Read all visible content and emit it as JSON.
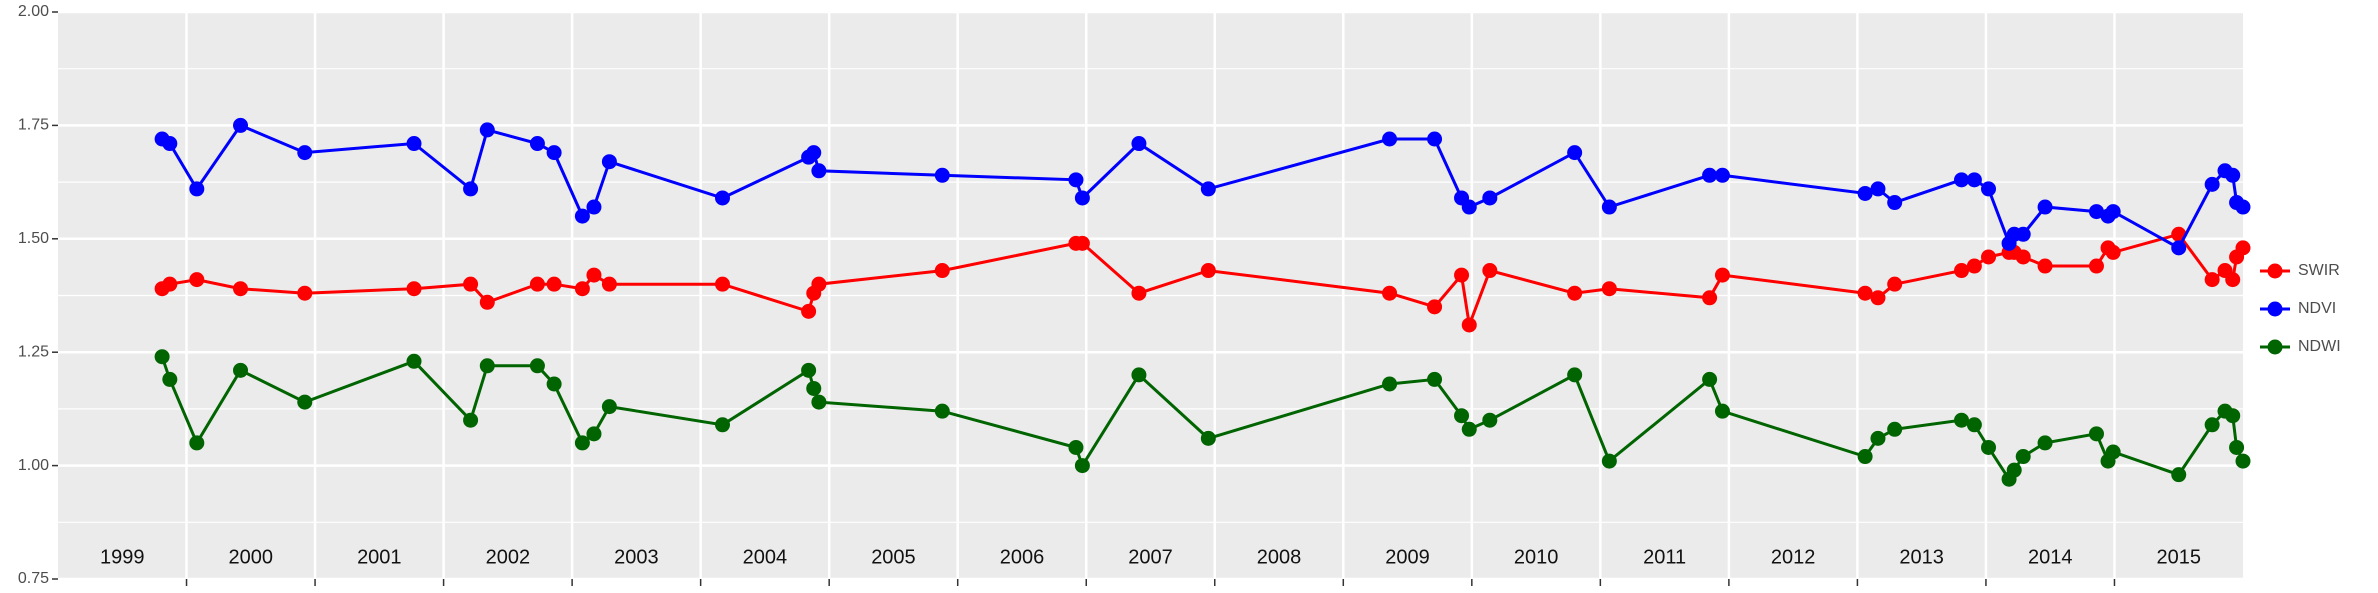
{
  "chart_data": {
    "type": "line",
    "x": [
      1999.81,
      1999.87,
      2000.08,
      2000.42,
      2000.92,
      2001.77,
      2002.21,
      2002.34,
      2002.73,
      2002.86,
      2003.08,
      2003.17,
      2003.29,
      2004.17,
      2004.84,
      2004.88,
      2004.92,
      2005.88,
      2006.92,
      2006.97,
      2007.41,
      2007.95,
      2009.36,
      2009.71,
      2009.92,
      2009.98,
      2010.14,
      2010.8,
      2011.07,
      2011.85,
      2011.95,
      2013.06,
      2013.16,
      2013.29,
      2013.81,
      2013.91,
      2014.02,
      2014.18,
      2014.22,
      2014.29,
      2014.46,
      2014.86,
      2014.95,
      2014.99,
      2015.5,
      2015.76,
      2015.86,
      2015.92,
      2015.95,
      2016.0
    ],
    "series": [
      {
        "name": "SWIR",
        "color": "#ff0000",
        "values": [
          1.39,
          1.4,
          1.41,
          1.39,
          1.38,
          1.39,
          1.4,
          1.36,
          1.4,
          1.4,
          1.39,
          1.42,
          1.4,
          1.4,
          1.34,
          1.38,
          1.4,
          1.43,
          1.49,
          1.49,
          1.38,
          1.43,
          1.38,
          1.35,
          1.42,
          1.31,
          1.43,
          1.38,
          1.39,
          1.37,
          1.42,
          1.38,
          1.37,
          1.4,
          1.43,
          1.44,
          1.46,
          1.47,
          1.47,
          1.46,
          1.44,
          1.44,
          1.48,
          1.47,
          1.51,
          1.41,
          1.43,
          1.41,
          1.46,
          1.48
        ]
      },
      {
        "name": "NDVI",
        "color": "#0000ff",
        "values": [
          1.72,
          1.71,
          1.61,
          1.75,
          1.69,
          1.71,
          1.61,
          1.74,
          1.71,
          1.69,
          1.55,
          1.57,
          1.67,
          1.59,
          1.68,
          1.69,
          1.65,
          1.64,
          1.63,
          1.59,
          1.71,
          1.61,
          1.72,
          1.72,
          1.59,
          1.57,
          1.59,
          1.69,
          1.57,
          1.64,
          1.64,
          1.6,
          1.61,
          1.58,
          1.63,
          1.63,
          1.61,
          1.49,
          1.51,
          1.51,
          1.57,
          1.56,
          1.55,
          1.56,
          1.48,
          1.62,
          1.65,
          1.64,
          1.58,
          1.57
        ]
      },
      {
        "name": "NDWI",
        "color": "#006400",
        "values": [
          1.24,
          1.19,
          1.05,
          1.21,
          1.14,
          1.23,
          1.1,
          1.22,
          1.22,
          1.18,
          1.05,
          1.07,
          1.13,
          1.09,
          1.21,
          1.17,
          1.14,
          1.12,
          1.04,
          1.0,
          1.2,
          1.06,
          1.18,
          1.19,
          1.11,
          1.08,
          1.1,
          1.2,
          1.01,
          1.19,
          1.12,
          1.02,
          1.06,
          1.08,
          1.1,
          1.09,
          1.04,
          0.97,
          0.99,
          1.02,
          1.05,
          1.07,
          1.01,
          1.03,
          0.98,
          1.09,
          1.12,
          1.11,
          1.04,
          1.01
        ]
      }
    ],
    "xlim": [
      1999.0,
      2016.0
    ],
    "xgrid": [
      2000,
      2001,
      2002,
      2003,
      2004,
      2005,
      2006,
      2007,
      2008,
      2009,
      2010,
      2011,
      2012,
      2013,
      2014,
      2015
    ],
    "ylim": [
      0.75,
      2.0
    ],
    "yticks": [
      {
        "value": 0.75,
        "label": "0.75"
      },
      {
        "value": 1.0,
        "label": "1.00"
      },
      {
        "value": 1.25,
        "label": "1.25"
      },
      {
        "value": 1.5,
        "label": "1.50"
      },
      {
        "value": 1.75,
        "label": "1.75"
      },
      {
        "value": 2.0,
        "label": "2.00"
      }
    ],
    "annotations": [
      {
        "text": "1999",
        "x": 1999.5
      },
      {
        "text": "2000",
        "x": 2000.5
      },
      {
        "text": "2001",
        "x": 2001.5
      },
      {
        "text": "2002",
        "x": 2002.5
      },
      {
        "text": "2003",
        "x": 2003.5
      },
      {
        "text": "2004",
        "x": 2004.5
      },
      {
        "text": "2005",
        "x": 2005.5
      },
      {
        "text": "2006",
        "x": 2006.5
      },
      {
        "text": "2007",
        "x": 2007.5
      },
      {
        "text": "2008",
        "x": 2008.5
      },
      {
        "text": "2009",
        "x": 2009.5
      },
      {
        "text": "2010",
        "x": 2010.5
      },
      {
        "text": "2011",
        "x": 2011.5
      },
      {
        "text": "2012",
        "x": 2012.5
      },
      {
        "text": "2013",
        "x": 2013.5
      },
      {
        "text": "2014",
        "x": 2014.5
      },
      {
        "text": "2015",
        "x": 2015.5
      }
    ],
    "grid": true,
    "legend": "right"
  }
}
